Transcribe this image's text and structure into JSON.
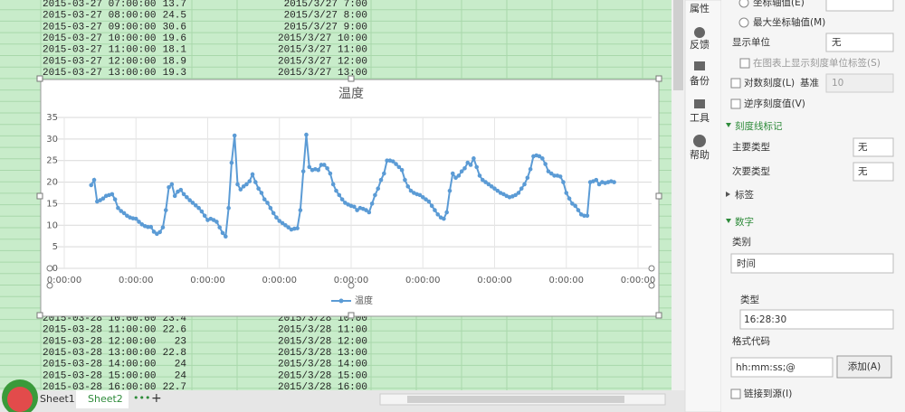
{
  "sheet": {
    "top_rows": [
      [
        "2015-03-27 07:00:00",
        "13.7",
        "2015/3/27 7:00"
      ],
      [
        "2015-03-27 08:00:00",
        "24.5",
        "2015/3/27 8:00"
      ],
      [
        "2015-03-27 09:00:00",
        "30.6",
        "2015/3/27 9:00"
      ],
      [
        "2015-03-27 10:00:00",
        "19.6",
        "2015/3/27 10:00"
      ],
      [
        "2015-03-27 11:00:00",
        "18.1",
        "2015/3/27 11:00"
      ],
      [
        "2015-03-27 12:00:00",
        "18.9",
        "2015/3/27 12:00"
      ],
      [
        "2015-03-27 13:00:00",
        "19.3",
        "2015/3/27 13:00"
      ]
    ],
    "bottom_rows": [
      [
        "2015-03-28 10:00:00",
        "23.4",
        "2015/3/28 10:00"
      ],
      [
        "2015-03-28 11:00:00",
        "22.6",
        "2015/3/28 11:00"
      ],
      [
        "2015-03-28 12:00:00",
        "23",
        "2015/3/28 12:00"
      ],
      [
        "2015-03-28 13:00:00",
        "22.8",
        "2015/3/28 13:00"
      ],
      [
        "2015-03-28 14:00:00",
        "24",
        "2015/3/28 14:00"
      ],
      [
        "2015-03-28 15:00:00",
        "24",
        "2015/3/28 15:00"
      ],
      [
        "2015-03-28 16:00:00",
        "22.7",
        "2015/3/28 16:00"
      ]
    ],
    "tabs": [
      "Sheet1",
      "Sheet2"
    ],
    "more": "•••",
    "add": "+"
  },
  "chart_data": {
    "type": "line",
    "title": "温度",
    "xlim": [
      0,
      192
    ],
    "xticks": [
      {
        "value": 0,
        "label": "0:00:00"
      },
      {
        "value": 24,
        "label": "0:00:00"
      },
      {
        "value": 48,
        "label": "0:00:00"
      },
      {
        "value": 72,
        "label": "0:00:00"
      },
      {
        "value": 96,
        "label": "0:00:00"
      },
      {
        "value": 120,
        "label": "0:00:00"
      },
      {
        "value": 144,
        "label": "0:00:00"
      },
      {
        "value": 168,
        "label": "0:00:00"
      },
      {
        "value": 192,
        "label": "0:00:00"
      }
    ],
    "ylim": [
      0,
      35
    ],
    "yticks": [
      0,
      5,
      10,
      15,
      20,
      25,
      30,
      35
    ],
    "grid": true,
    "legend": "bottom",
    "x": [
      9,
      10,
      11,
      12,
      13,
      14,
      15,
      16,
      17,
      18,
      19,
      20,
      21,
      22,
      23,
      24,
      25,
      26,
      27,
      28,
      29,
      30,
      31,
      32,
      33,
      34,
      35,
      36,
      37,
      38,
      39,
      40,
      41,
      42,
      43,
      44,
      45,
      46,
      47,
      48,
      49,
      50,
      51,
      52,
      53,
      54,
      55,
      56,
      57,
      58,
      59,
      60,
      61,
      62,
      63,
      64,
      65,
      66,
      67,
      68,
      69,
      70,
      71,
      72,
      73,
      74,
      75,
      76,
      77,
      78,
      79,
      80,
      81,
      82,
      83,
      84,
      85,
      86,
      87,
      88,
      89,
      90,
      91,
      92,
      93,
      94,
      95,
      96,
      97,
      98,
      99,
      100,
      101,
      102,
      103,
      104,
      105,
      106,
      107,
      108,
      109,
      110,
      111,
      112,
      113,
      114,
      115,
      116,
      117,
      118,
      119,
      120,
      121,
      122,
      123,
      124,
      125,
      126,
      127,
      128,
      129,
      130,
      131,
      132,
      133,
      134,
      135,
      136,
      137,
      138,
      139,
      140,
      141,
      142,
      143,
      144,
      145,
      146,
      147,
      148,
      149,
      150,
      151,
      152,
      153,
      154,
      155,
      156,
      157,
      158,
      159,
      160,
      161,
      162,
      163,
      164,
      165,
      166,
      167,
      168,
      169,
      170,
      171,
      172,
      173,
      174,
      175,
      176,
      177,
      178,
      179,
      180,
      181,
      182,
      183,
      184
    ],
    "series": [
      {
        "name": "温度",
        "color": "#5b9bd5",
        "values": [
          19.3,
          20.5,
          15.5,
          15.8,
          16.2,
          16.8,
          17,
          17.2,
          16,
          14,
          13.3,
          12.8,
          12.2,
          11.8,
          11.6,
          11.5,
          10.8,
          10.2,
          9.8,
          9.6,
          9.6,
          8.5,
          8,
          8.4,
          9.5,
          13.5,
          18.8,
          19.5,
          16.8,
          17.8,
          18.2,
          17.2,
          16.5,
          15.8,
          15.2,
          14.6,
          14,
          13.2,
          12.2,
          11.2,
          11.5,
          11.2,
          10.8,
          9.5,
          8.2,
          7.4,
          14,
          24.5,
          30.8,
          19.5,
          18.3,
          19,
          19.5,
          20.2,
          21.8,
          20,
          18.5,
          17.5,
          16,
          15.2,
          14,
          12.8,
          11.8,
          11,
          10.5,
          10,
          9.5,
          9,
          9.2,
          9.3,
          13.5,
          22.5,
          31,
          23.5,
          22.8,
          23,
          22.8,
          24,
          24,
          23.2,
          22,
          19.5,
          18,
          17,
          16,
          15.2,
          14.8,
          14.5,
          14.3,
          13.5,
          14,
          13.8,
          13.5,
          13,
          15,
          17,
          18.5,
          20.5,
          22,
          25,
          25,
          24.8,
          24.2,
          23.5,
          22.8,
          20.5,
          19,
          18,
          17.5,
          17.2,
          17,
          16.5,
          16,
          15.5,
          14.5,
          13.5,
          12.5,
          11.8,
          11.5,
          13,
          18,
          22,
          21,
          21.5,
          22.5,
          23.2,
          24.5,
          24,
          25.5,
          23.5,
          21.5,
          20.5,
          20,
          19.5,
          19,
          18.5,
          18,
          17.5,
          17.2,
          16.8,
          16.5,
          16.7,
          17,
          17.5,
          18.5,
          19.5,
          21,
          23,
          26,
          26.2,
          26,
          25.5,
          24.2,
          22.5,
          22,
          21.5,
          21.5,
          21.3,
          20,
          17.5,
          16.2,
          15,
          14.5,
          13.5,
          12.5,
          12.2,
          12.2,
          20,
          20.2,
          20.5,
          19.5,
          20,
          19.8,
          20,
          20.2,
          20
        ]
      }
    ]
  },
  "panel": {
    "side_tabs": [
      "属性",
      "反馈",
      "备份",
      "工具",
      "帮助"
    ],
    "axis_value": "坐标轴值(E)",
    "max_axis_value": "最大坐标轴值(M)",
    "display_unit": {
      "label": "显示单位",
      "value": "无"
    },
    "show_unit_label": "在图表上显示刻度单位标签(S)",
    "log_scale": {
      "label": "对数刻度(L)",
      "base_label": "基准",
      "base": 10
    },
    "reverse": "逆序刻度值(V)",
    "tick_marks": {
      "title": "刻度线标记",
      "major": {
        "label": "主要类型",
        "value": "无"
      },
      "minor": {
        "label": "次要类型",
        "value": "无"
      }
    },
    "labels_section": "标签",
    "number": {
      "title": "数字",
      "category_label": "类别",
      "category": "时间",
      "type_label": "类型",
      "type": "16:28:30",
      "format_label": "格式代码",
      "format": "hh:mm:ss;@",
      "add_button": "添加(A)",
      "link_source": "链接到源(I)"
    }
  }
}
